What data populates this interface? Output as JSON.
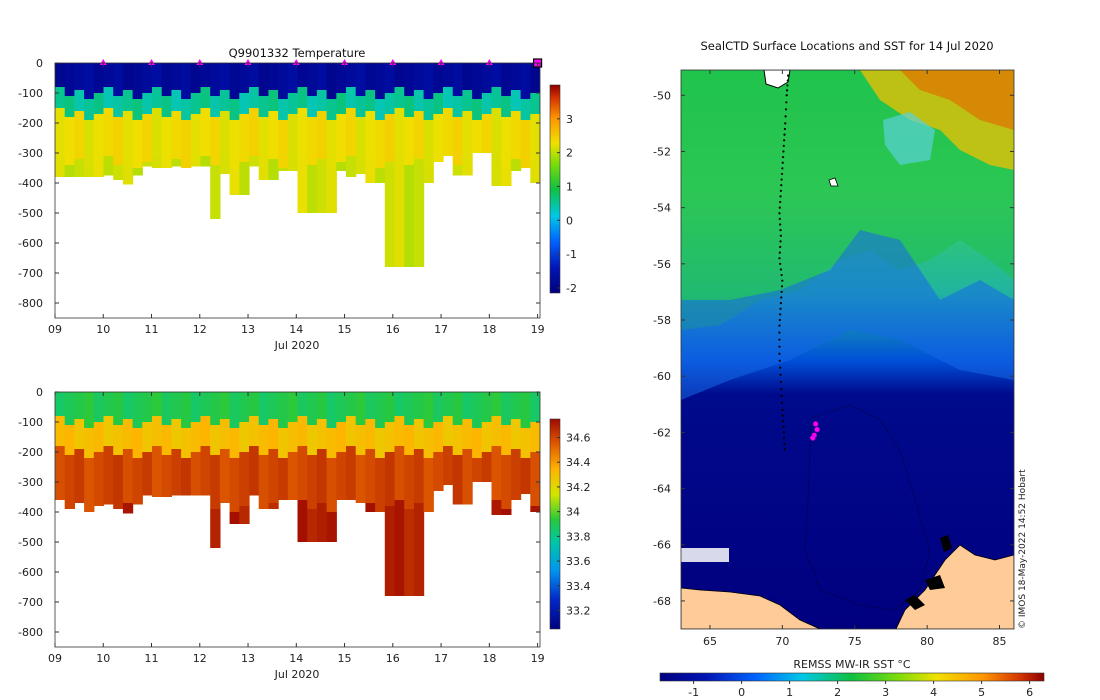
{
  "chart_data": [
    {
      "type": "heatmap",
      "title": "Q9901332  Temperature",
      "xlabel": "Jul 2020",
      "ylabel": "",
      "x_ticks": [
        "09",
        "10",
        "11",
        "12",
        "13",
        "14",
        "15",
        "16",
        "17",
        "18",
        "19"
      ],
      "x_range": [
        9,
        19.05
      ],
      "y_ticks": [
        "0",
        "-100",
        "-200",
        "-300",
        "-400",
        "-500",
        "-600",
        "-700",
        "-800"
      ],
      "ylim": [
        -850,
        0
      ],
      "colorbar_ticks": [
        "3",
        "2",
        "1",
        "0",
        "-1",
        "-2"
      ],
      "colorbar_range": [
        -2.15,
        4.0
      ],
      "surface_markers_day": [
        10.0,
        11.0,
        12.0,
        13.0,
        14.0,
        15.0,
        16.0,
        17.0,
        18.0,
        19.0
      ],
      "profile_max_depth": [
        380,
        380,
        380,
        380,
        380,
        375,
        390,
        405,
        375,
        345,
        350,
        350,
        345,
        345,
        345,
        345,
        520,
        370,
        440,
        440,
        345,
        390,
        390,
        360,
        360,
        500,
        500,
        500,
        500,
        360,
        380,
        370,
        400,
        400,
        680,
        680,
        680,
        680,
        400,
        330,
        310,
        375,
        375,
        300,
        300,
        410,
        410,
        360,
        340,
        400
      ],
      "layers": [
        {
          "upper_depth": 0,
          "lower_depth": -100,
          "value": -1.8
        },
        {
          "upper_depth": -100,
          "lower_depth": -170,
          "value": 0.5
        },
        {
          "upper_depth": -170,
          "lower_depth": -330,
          "value": 2.3
        },
        {
          "upper_depth": -330,
          "lower_depth": -700,
          "value": 2.1
        }
      ]
    },
    {
      "type": "heatmap",
      "title": "",
      "xlabel": "Jul 2020",
      "ylabel": "",
      "x_ticks": [
        "09",
        "10",
        "11",
        "12",
        "13",
        "14",
        "15",
        "16",
        "17",
        "18",
        "19"
      ],
      "x_range": [
        9,
        19.05
      ],
      "y_ticks": [
        "0",
        "-100",
        "-200",
        "-300",
        "-400",
        "-500",
        "-600",
        "-700",
        "-800"
      ],
      "ylim": [
        -850,
        0
      ],
      "colorbar_ticks": [
        "34.6",
        "34.4",
        "34.2",
        "34",
        "33.8",
        "33.6",
        "33.4",
        "33.2"
      ],
      "colorbar_range": [
        33.05,
        34.75
      ],
      "profile_max_depth": [
        380,
        380,
        380,
        380,
        380,
        375,
        390,
        405,
        375,
        345,
        350,
        350,
        345,
        345,
        345,
        345,
        520,
        370,
        440,
        440,
        345,
        390,
        390,
        360,
        360,
        500,
        500,
        500,
        500,
        360,
        380,
        370,
        400,
        400,
        680,
        680,
        680,
        680,
        400,
        330,
        310,
        375,
        375,
        300,
        300,
        410,
        410,
        360,
        340,
        400
      ],
      "layers": [
        {
          "upper_depth": 0,
          "lower_depth": -100,
          "value": 33.9
        },
        {
          "upper_depth": -100,
          "lower_depth": -200,
          "value": 34.3
        },
        {
          "upper_depth": -200,
          "lower_depth": -380,
          "value": 34.6
        },
        {
          "upper_depth": -380,
          "lower_depth": -700,
          "value": 34.7
        }
      ]
    },
    {
      "type": "heatmap",
      "title": "SealCTD Surface Locations and SST for 14 Jul 2020",
      "xlabel": "",
      "ylabel": "",
      "x_ticks": [
        "65",
        "70",
        "75",
        "80",
        "85"
      ],
      "x_range": [
        63,
        86
      ],
      "y_ticks": [
        "-50",
        "-52",
        "-54",
        "-56",
        "-58",
        "-60",
        "-62",
        "-64",
        "-66",
        "-68"
      ],
      "ylim": [
        -69.0,
        -49.1
      ],
      "colorbar_label": "REMSS MW-IR SST °C",
      "colorbar_ticks": [
        "-1",
        "0",
        "1",
        "2",
        "3",
        "4",
        "5",
        "6"
      ],
      "colorbar_range": [
        -1.7,
        6.3
      ],
      "track": [
        [
          70.4,
          -49.3
        ],
        [
          70.3,
          -50
        ],
        [
          70.2,
          -51
        ],
        [
          70.1,
          -51.8
        ],
        [
          70.0,
          -52.6
        ],
        [
          69.9,
          -53.4
        ],
        [
          69.8,
          -54.2
        ],
        [
          69.9,
          -55.0
        ],
        [
          69.8,
          -55.8
        ],
        [
          70.0,
          -56.6
        ],
        [
          69.9,
          -57.4
        ],
        [
          69.8,
          -58.2
        ],
        [
          69.8,
          -59.2
        ],
        [
          69.9,
          -60.2
        ],
        [
          70.0,
          -61.2
        ],
        [
          70.1,
          -62.0
        ],
        [
          70.2,
          -62.8
        ]
      ],
      "latest_positions": [
        [
          72.3,
          -61.7
        ],
        [
          72.4,
          -61.9
        ],
        [
          72.2,
          -62.1
        ],
        [
          72.1,
          -62.2
        ]
      ],
      "credit": "© IMOS 18-May-2022 14:52 Hobart"
    }
  ]
}
